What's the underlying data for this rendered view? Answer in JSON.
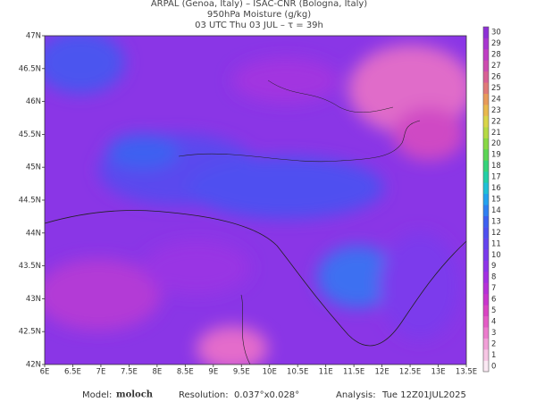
{
  "header": {
    "lines": [
      "ARPAL (Genoa, Italy)  –  ISAC-CNR (Bologna, Italy)",
      "950hPa Moisture (g/kg)",
      "03 UTC Thu 03 JUL  –  τ = 39h"
    ]
  },
  "map": {
    "lat_labels": [
      "47N",
      "46.5N",
      "46N",
      "45.5N",
      "45N",
      "44.5N",
      "44N",
      "43.5N",
      "43N",
      "42.5N",
      "42N"
    ],
    "lon_labels": [
      "6E",
      "6.5E",
      "7E",
      "7.5E",
      "8E",
      "8.5E",
      "9E",
      "9.5E",
      "10E",
      "10.5E",
      "11E",
      "11.5E",
      "12E",
      "12.5E",
      "13E",
      "13.5E"
    ]
  },
  "colorbar": {
    "labels": [
      "0",
      "1",
      "2",
      "3",
      "4",
      "5",
      "6",
      "7",
      "8",
      "9",
      "10",
      "11",
      "12",
      "13",
      "14",
      "15",
      "16",
      "17",
      "18",
      "19",
      "20",
      "21",
      "22",
      "23",
      "24",
      "25",
      "26",
      "27",
      "28",
      "29",
      "30"
    ],
    "colors": [
      "#fbe9f3",
      "#f7c6e4",
      "#f2a0d8",
      "#ec7ccd",
      "#e45cc6",
      "#d944c3",
      "#c935cd",
      "#b630d8",
      "#a32fe2",
      "#8e34e8",
      "#7a3aec",
      "#6544ef",
      "#4f4ff0",
      "#3d60f1",
      "#2f80f2",
      "#23a2ef",
      "#1fc0d6",
      "#22cfa6",
      "#35d37a",
      "#5bd555",
      "#88d844",
      "#b5da44",
      "#d9d548",
      "#e9b84c",
      "#e89a5a",
      "#e07a78",
      "#d86095",
      "#cd4cb0",
      "#bf3ec4",
      "#a836d0",
      "#8e30d6"
    ]
  },
  "footer": {
    "model_label": "Model:",
    "model": "moloch",
    "resolution_label": "Resolution:",
    "resolution": "0.037°x0.028°",
    "analysis_label": "Analysis:",
    "analysis": "Tue 12Z01JUL2025"
  }
}
